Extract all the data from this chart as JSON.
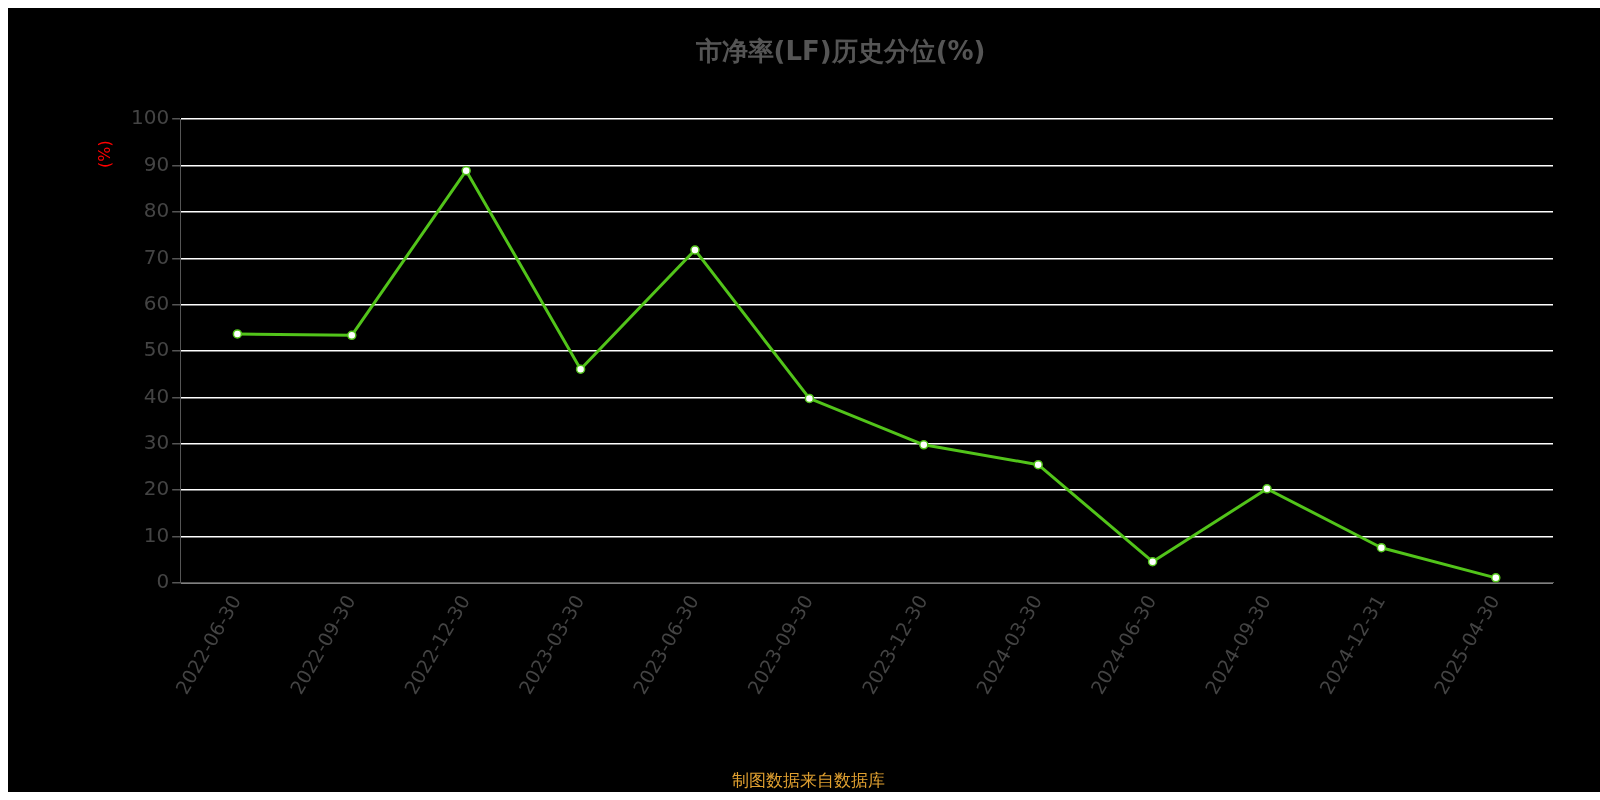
{
  "chart_data": {
    "type": "line",
    "title": "市净率(LF)历史分位(%)",
    "ylabel": "(%)",
    "annotations": [
      "制图数据来自数据库"
    ],
    "categories": [
      "2022-06-30",
      "2022-09-30",
      "2022-12-30",
      "2023-03-30",
      "2023-06-30",
      "2023-09-30",
      "2023-12-30",
      "2024-03-30",
      "2024-06-30",
      "2024-09-30",
      "2024-12-31",
      "2025-04-30"
    ],
    "series": [
      {
        "color": "#52c41a",
        "values": [
          53.7,
          53.4,
          88.9,
          46.1,
          71.8,
          39.8,
          29.8,
          25.5,
          4.6,
          20.3,
          7.6,
          1.1
        ]
      }
    ],
    "ylim": [
      0,
      100
    ],
    "yticks": [
      0,
      10,
      20,
      30,
      40,
      50,
      60,
      70,
      80,
      90,
      100
    ],
    "grid": "y",
    "legend": false,
    "marker": "circle",
    "line_style": "solid"
  }
}
